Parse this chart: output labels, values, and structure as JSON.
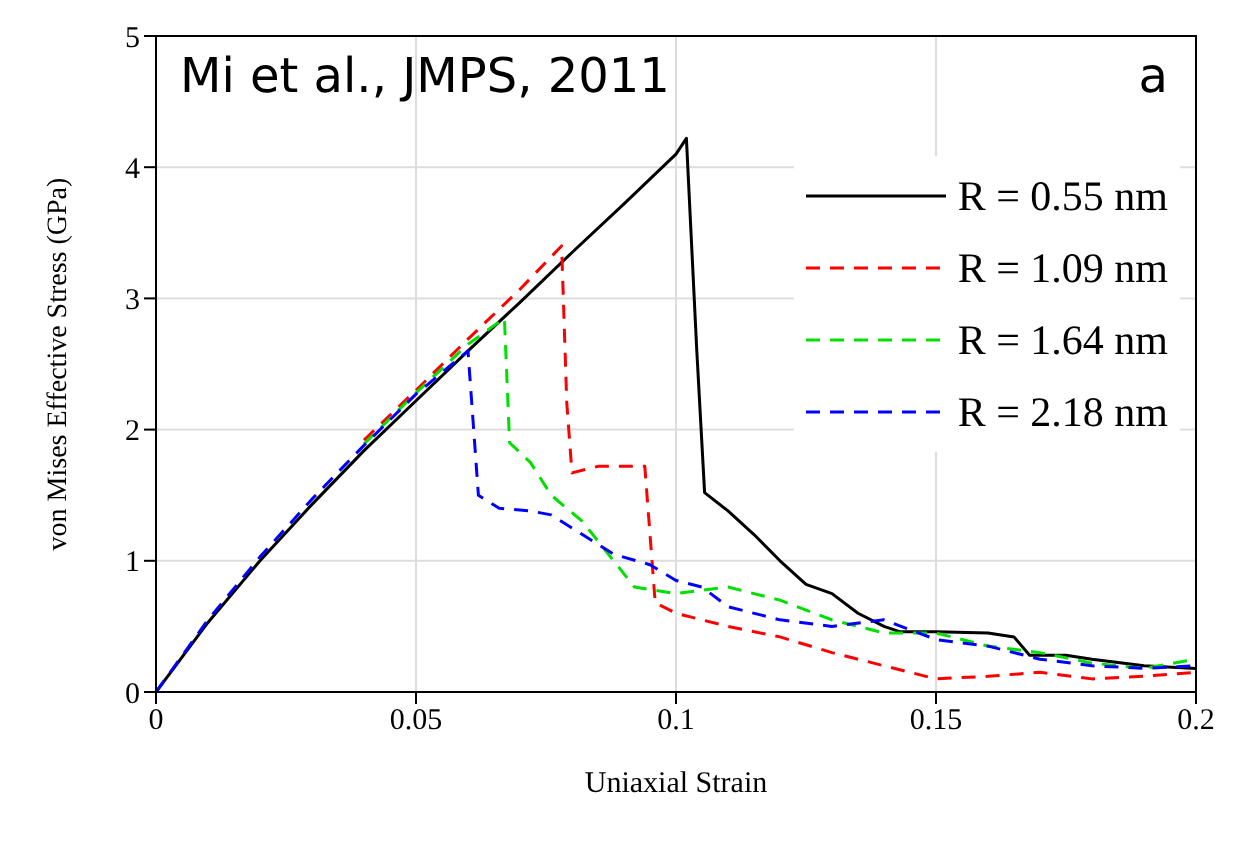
{
  "chart_data": {
    "type": "line",
    "xlabel": "Uniaxial Strain",
    "ylabel": "von Mises Effective Stress (GPa)",
    "annotations": [
      "Mi et al., JMPS, 2011",
      "a"
    ],
    "xlim": [
      0,
      0.2
    ],
    "xticks": [
      0,
      0.05,
      0.1,
      0.15,
      0.2
    ],
    "ylim": [
      0,
      5
    ],
    "yticks": [
      0,
      1,
      2,
      3,
      4,
      5
    ],
    "grid": true,
    "legend": "top right",
    "marker": "none",
    "series": [
      {
        "name": "R = 0.55 nm",
        "color": "#000000",
        "line_style": "solid",
        "x": [
          0,
          0.01,
          0.02,
          0.03,
          0.04,
          0.05,
          0.06,
          0.07,
          0.08,
          0.09,
          0.1,
          0.102,
          0.104,
          0.1055,
          0.11,
          0.115,
          0.12,
          0.125,
          0.13,
          0.135,
          0.14,
          0.143,
          0.15,
          0.16,
          0.165,
          0.168,
          0.175,
          0.18,
          0.19,
          0.2
        ],
        "values": [
          0,
          0.53,
          1.0,
          1.43,
          1.84,
          2.22,
          2.6,
          2.97,
          3.35,
          3.72,
          4.1,
          4.22,
          2.6,
          1.52,
          1.38,
          1.2,
          1.0,
          0.82,
          0.75,
          0.6,
          0.5,
          0.46,
          0.46,
          0.45,
          0.42,
          0.28,
          0.28,
          0.25,
          0.2,
          0.18
        ]
      },
      {
        "name": "R = 1.09 nm",
        "color": "#ff0000",
        "line_style": "dashed",
        "x": [
          0.04,
          0.05,
          0.06,
          0.07,
          0.078,
          0.079,
          0.08,
          0.085,
          0.094,
          0.096,
          0.1,
          0.11,
          0.12,
          0.13,
          0.14,
          0.15,
          0.16,
          0.17,
          0.18,
          0.19,
          0.2
        ],
        "values": [
          1.92,
          2.3,
          2.69,
          3.07,
          3.4,
          2.2,
          1.67,
          1.72,
          1.72,
          0.68,
          0.6,
          0.5,
          0.42,
          0.3,
          0.2,
          0.1,
          0.12,
          0.15,
          0.1,
          0.12,
          0.15
        ]
      },
      {
        "name": "R = 1.64 nm",
        "color": "#00e000",
        "line_style": "dashed",
        "x": [
          0.04,
          0.05,
          0.06,
          0.067,
          0.068,
          0.072,
          0.076,
          0.082,
          0.088,
          0.092,
          0.1,
          0.11,
          0.12,
          0.13,
          0.14,
          0.15,
          0.16,
          0.17,
          0.18,
          0.19,
          0.2
        ],
        "values": [
          1.89,
          2.28,
          2.65,
          2.85,
          1.9,
          1.75,
          1.5,
          1.3,
          1.0,
          0.8,
          0.75,
          0.8,
          0.7,
          0.55,
          0.45,
          0.45,
          0.35,
          0.3,
          0.22,
          0.18,
          0.25
        ]
      },
      {
        "name": "R = 2.18 nm",
        "color": "#0000ff",
        "line_style": "dashed",
        "x": [
          0,
          0.01,
          0.02,
          0.03,
          0.04,
          0.05,
          0.06,
          0.062,
          0.066,
          0.072,
          0.076,
          0.082,
          0.088,
          0.095,
          0.1,
          0.105,
          0.11,
          0.12,
          0.13,
          0.14,
          0.15,
          0.16,
          0.17,
          0.18,
          0.19,
          0.2
        ],
        "values": [
          0,
          0.55,
          1.03,
          1.47,
          1.88,
          2.27,
          2.6,
          1.5,
          1.4,
          1.38,
          1.35,
          1.2,
          1.05,
          0.97,
          0.85,
          0.8,
          0.65,
          0.55,
          0.5,
          0.55,
          0.4,
          0.35,
          0.25,
          0.2,
          0.18,
          0.2
        ]
      }
    ]
  }
}
